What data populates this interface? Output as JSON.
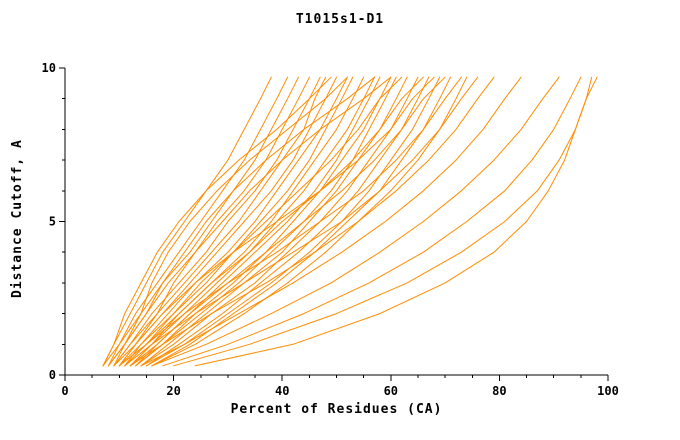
{
  "page": {
    "title": "T1015s1-D1"
  },
  "chart_data": {
    "type": "line",
    "title": "T1015s1-D1",
    "xlabel": "Percent of Residues (CA)",
    "ylabel": "Distance Cutoff, A",
    "xlim": [
      0,
      100
    ],
    "ylim": [
      0,
      10
    ],
    "x_ticks_major": [
      0,
      20,
      40,
      60,
      80,
      100
    ],
    "x_tick_minor_step": 5,
    "y_ticks_major": [
      0,
      5,
      10
    ],
    "y_tick_minor_step": 1,
    "grid": false,
    "legend_position": "none",
    "line_color": "#ff8c00",
    "axis_color": "#000000",
    "y_levels": [
      0.3,
      1,
      2,
      3,
      4,
      5,
      6,
      7,
      8,
      9,
      9.7
    ],
    "series": [
      {
        "x": [
          7,
          9,
          12,
          15,
          18,
          22,
          26,
          30,
          33,
          36,
          38
        ]
      },
      {
        "x": [
          7,
          10,
          13,
          17,
          21,
          25,
          29,
          33,
          36,
          39,
          41
        ]
      },
      {
        "x": [
          8,
          10,
          14,
          18,
          23,
          27,
          31,
          35,
          38,
          41,
          43
        ]
      },
      {
        "x": [
          8,
          11,
          15,
          19,
          24,
          28,
          33,
          37,
          40,
          43,
          45
        ]
      },
      {
        "x": [
          9,
          12,
          16,
          21,
          26,
          30,
          35,
          39,
          42,
          45,
          47
        ]
      },
      {
        "x": [
          9,
          12,
          17,
          22,
          27,
          32,
          36,
          40,
          44,
          46,
          48
        ]
      },
      {
        "x": [
          10,
          13,
          18,
          23,
          28,
          33,
          38,
          42,
          45,
          48,
          50
        ]
      },
      {
        "x": [
          10,
          14,
          19,
          24,
          30,
          35,
          39,
          43,
          47,
          50,
          52
        ]
      },
      {
        "x": [
          11,
          14,
          20,
          26,
          31,
          36,
          41,
          45,
          48,
          51,
          53
        ]
      },
      {
        "x": [
          11,
          15,
          21,
          27,
          33,
          38,
          42,
          46,
          50,
          53,
          55
        ]
      },
      {
        "x": [
          12,
          16,
          22,
          28,
          34,
          39,
          44,
          48,
          52,
          55,
          57
        ]
      },
      {
        "x": [
          12,
          17,
          23,
          29,
          35,
          41,
          46,
          50,
          53,
          56,
          58
        ]
      },
      {
        "x": [
          13,
          18,
          24,
          31,
          37,
          42,
          47,
          51,
          55,
          58,
          60
        ]
      },
      {
        "x": [
          13,
          18,
          25,
          32,
          38,
          44,
          49,
          53,
          56,
          59,
          61
        ]
      },
      {
        "x": [
          14,
          19,
          26,
          33,
          40,
          45,
          50,
          54,
          58,
          61,
          63
        ]
      },
      {
        "x": [
          14,
          20,
          27,
          35,
          41,
          47,
          52,
          56,
          60,
          63,
          65
        ]
      },
      {
        "x": [
          15,
          21,
          29,
          36,
          43,
          49,
          54,
          58,
          62,
          65,
          67
        ]
      },
      {
        "x": [
          15,
          22,
          30,
          38,
          45,
          51,
          56,
          60,
          64,
          67,
          69
        ]
      },
      {
        "x": [
          16,
          23,
          31,
          39,
          46,
          52,
          58,
          62,
          66,
          69,
          71
        ]
      },
      {
        "x": [
          16,
          24,
          33,
          41,
          48,
          54,
          60,
          65,
          69,
          72,
          74
        ]
      },
      {
        "x": [
          10,
          13,
          17,
          20,
          24,
          29,
          34,
          40,
          47,
          55,
          60
        ]
      },
      {
        "x": [
          8,
          11,
          14,
          16,
          19,
          23,
          28,
          34,
          41,
          48,
          52
        ]
      },
      {
        "x": [
          9,
          11,
          15,
          18,
          22,
          26,
          31,
          37,
          44,
          52,
          57
        ]
      },
      {
        "x": [
          7,
          9,
          11,
          14,
          17,
          21,
          26,
          32,
          39,
          45,
          49
        ]
      },
      {
        "x": [
          11,
          15,
          20,
          25,
          31,
          37,
          43,
          49,
          54,
          58,
          62
        ]
      },
      {
        "x": [
          12,
          16,
          21,
          27,
          34,
          40,
          47,
          53,
          58,
          62,
          66
        ]
      },
      {
        "x": [
          13,
          17,
          23,
          30,
          37,
          44,
          51,
          57,
          62,
          66,
          70
        ]
      },
      {
        "x": [
          9,
          13,
          18,
          24,
          31,
          39,
          47,
          54,
          60,
          64,
          68
        ]
      },
      {
        "x": [
          10,
          15,
          22,
          30,
          39,
          47,
          55,
          61,
          66,
          70,
          73
        ]
      },
      {
        "x": [
          11,
          16,
          24,
          33,
          42,
          51,
          58,
          64,
          69,
          73,
          76
        ]
      },
      {
        "x": [
          12,
          18,
          27,
          37,
          46,
          54,
          61,
          67,
          72,
          76,
          79
        ]
      },
      {
        "x": [
          14,
          22,
          32,
          42,
          51,
          59,
          66,
          72,
          77,
          81,
          84
        ]
      },
      {
        "x": [
          16,
          26,
          38,
          49,
          58,
          66,
          73,
          79,
          84,
          88,
          91
        ]
      },
      {
        "x": [
          18,
          30,
          44,
          56,
          66,
          74,
          81,
          86,
          90,
          93,
          95
        ]
      },
      {
        "x": [
          20,
          34,
          50,
          63,
          73,
          81,
          87,
          91,
          94,
          96,
          98
        ]
      },
      {
        "x": [
          24,
          42,
          58,
          70,
          79,
          85,
          89,
          92,
          94,
          96,
          97
        ]
      }
    ]
  }
}
